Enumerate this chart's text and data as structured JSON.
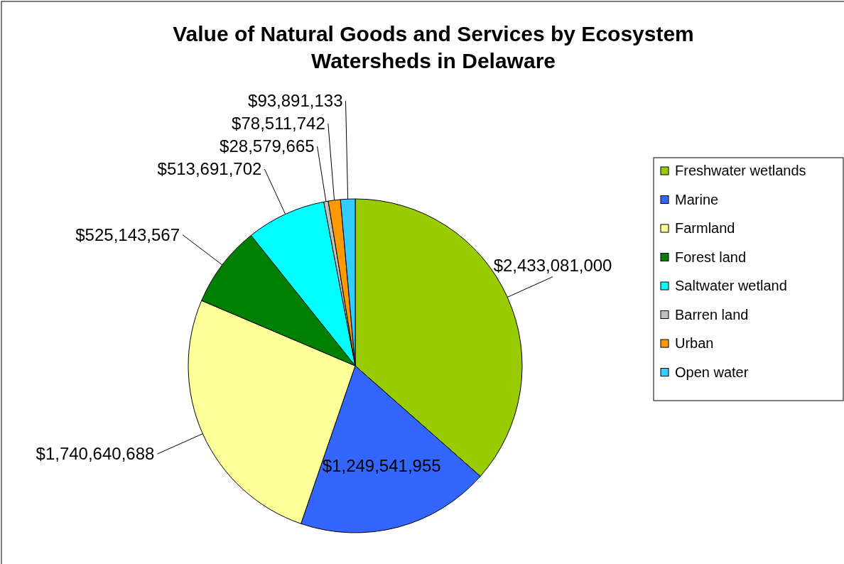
{
  "chart_data": {
    "type": "pie",
    "title": "Value of Natural Goods and Services by Ecosystem Watersheds in Delaware",
    "categories": [
      "Freshwater wetlands",
      "Marine",
      "Farmland",
      "Forest land",
      "Saltwater wetland",
      "Barren land",
      "Urban",
      "Open water"
    ],
    "values": [
      2433081000,
      1249541955,
      1740640688,
      525143567,
      513691702,
      28579665,
      78511742,
      93891133
    ],
    "value_labels": [
      "$2,433,081,000",
      "$1,249,541,955",
      "$1,740,640,688",
      "$525,143,567",
      "$513,691,702",
      "$28,579,665",
      "$78,511,742",
      "$93,891,133"
    ],
    "colors": [
      "#99cc00",
      "#3366ff",
      "#ffff99",
      "#008000",
      "#00ffff",
      "#c0c0c0",
      "#ff9900",
      "#33ccff"
    ],
    "legend": "right"
  }
}
